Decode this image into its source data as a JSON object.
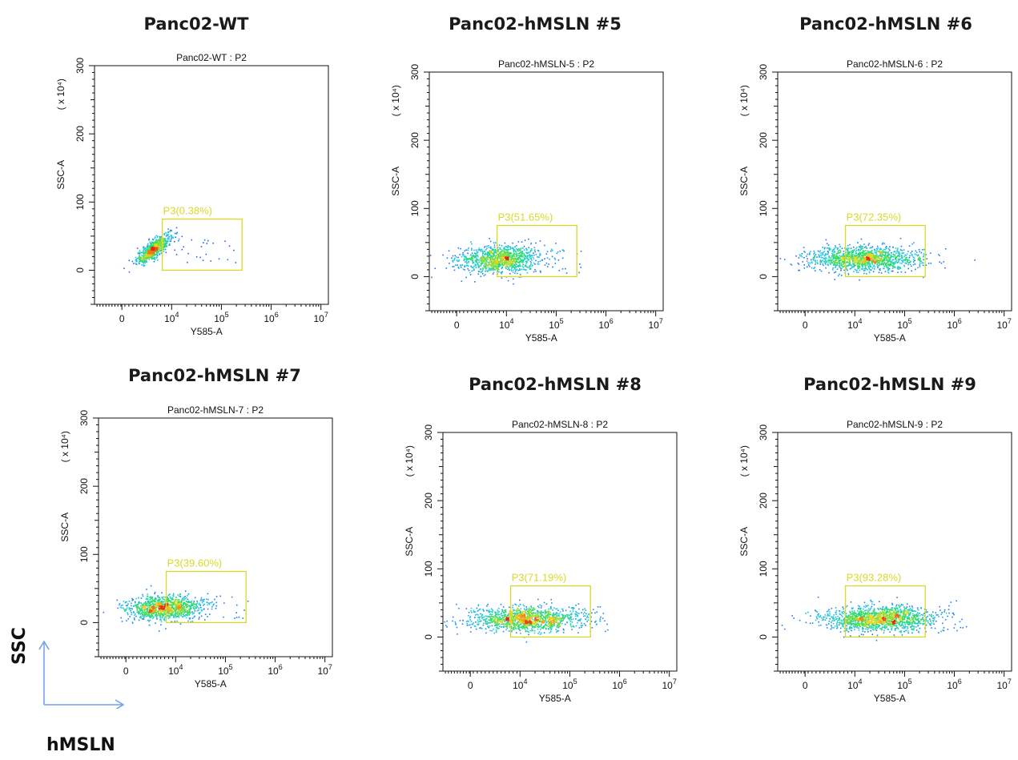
{
  "chart_data": [
    {
      "type": "scatter",
      "panel_heading": "Panc02-WT",
      "title": "Panc02-WT : P2",
      "xlabel": "Y585-A",
      "ylabel": "SSC-A",
      "y_unit": "(x 10^4)",
      "x_scale": "log",
      "x_ticks": [
        "0",
        "10^4",
        "10^5",
        "10^6",
        "10^7"
      ],
      "y_ticks": [
        "0",
        "100",
        "200",
        "300"
      ],
      "ylim": [
        -50,
        300
      ],
      "gate": {
        "name": "P3",
        "label": "P3(0.38%)",
        "x": [
          6000,
          260000
        ],
        "y": [
          0,
          75
        ]
      },
      "populations": [
        {
          "x_center": 3500,
          "x_spread": 0.17,
          "y_center": 32,
          "y_spread": 11,
          "corr": 0.8,
          "count": 700
        }
      ]
    },
    {
      "type": "scatter",
      "panel_heading": "Panc02-hMSLN #5",
      "title": "Panc02-hMSLN-5 : P2",
      "xlabel": "Y585-A",
      "ylabel": "SSC-A",
      "y_unit": "(x 10^4)",
      "x_scale": "log",
      "x_ticks": [
        "0",
        "10^4",
        "10^5",
        "10^6",
        "10^7"
      ],
      "y_ticks": [
        "0",
        "100",
        "200",
        "300"
      ],
      "ylim": [
        -50,
        300
      ],
      "gate": {
        "name": "P3",
        "label": "P3(51.65%)",
        "x": [
          6000,
          260000
        ],
        "y": [
          0,
          75
        ]
      },
      "populations": [
        {
          "x_center": 6500,
          "x_spread": 0.42,
          "y_center": 26,
          "y_spread": 10,
          "corr": 0.1,
          "count": 1100
        }
      ]
    },
    {
      "type": "scatter",
      "panel_heading": "Panc02-hMSLN #6",
      "title": "Panc02-hMSLN-6 : P2",
      "xlabel": "Y585-A",
      "ylabel": "SSC-A",
      "y_unit": "(x 10^4)",
      "x_scale": "log",
      "x_ticks": [
        "0",
        "10^4",
        "10^5",
        "10^6",
        "10^7"
      ],
      "y_ticks": [
        "0",
        "100",
        "200",
        "300"
      ],
      "ylim": [
        -50,
        300
      ],
      "gate": {
        "name": "P3",
        "label": "P3(72.35%)",
        "x": [
          6000,
          260000
        ],
        "y": [
          0,
          75
        ]
      },
      "populations": [
        {
          "x_center": 14000,
          "x_spread": 0.55,
          "y_center": 27,
          "y_spread": 9,
          "corr": 0.05,
          "count": 1300
        }
      ]
    },
    {
      "type": "scatter",
      "panel_heading": "Panc02-hMSLN #7",
      "title": "Panc02-hMSLN-7 : P2",
      "xlabel": "Y585-A",
      "ylabel": "SSC-A",
      "y_unit": "(x 10^4)",
      "x_scale": "log",
      "x_ticks": [
        "0",
        "10^4",
        "10^5",
        "10^6",
        "10^7"
      ],
      "y_ticks": [
        "0",
        "100",
        "200",
        "300"
      ],
      "ylim": [
        -50,
        300
      ],
      "gate": {
        "name": "P3",
        "label": "P3(39.60%)",
        "x": [
          6000,
          260000
        ],
        "y": [
          0,
          75
        ]
      },
      "populations": [
        {
          "x_center": 5000,
          "x_spread": 0.38,
          "y_center": 22,
          "y_spread": 9,
          "corr": 0.1,
          "count": 1100
        }
      ]
    },
    {
      "type": "scatter",
      "panel_heading": "Panc02-hMSLN #8",
      "title": "Panc02-hMSLN-8 : P2",
      "xlabel": "Y585-A",
      "ylabel": "SSC-A",
      "y_unit": "(x 10^4)",
      "x_scale": "log",
      "x_ticks": [
        "0",
        "10^4",
        "10^5",
        "10^6",
        "10^7"
      ],
      "y_ticks": [
        "0",
        "100",
        "200",
        "300"
      ],
      "ylim": [
        -50,
        300
      ],
      "gate": {
        "name": "P3",
        "label": "P3(71.19%)",
        "x": [
          6000,
          260000
        ],
        "y": [
          0,
          75
        ]
      },
      "populations": [
        {
          "x_center": 12000,
          "x_spread": 0.55,
          "y_center": 27,
          "y_spread": 9,
          "corr": 0.05,
          "count": 1300
        }
      ]
    },
    {
      "type": "scatter",
      "panel_heading": "Panc02-hMSLN #9",
      "title": "Panc02-hMSLN-9 : P2",
      "xlabel": "Y585-A",
      "ylabel": "SSC-A",
      "y_unit": "(x 10^4)",
      "x_scale": "log",
      "x_ticks": [
        "0",
        "10^4",
        "10^5",
        "10^6",
        "10^7"
      ],
      "y_ticks": [
        "0",
        "100",
        "200",
        "300"
      ],
      "ylim": [
        -50,
        300
      ],
      "gate": {
        "name": "P3",
        "label": "P3(93.28%)",
        "x": [
          6000,
          260000
        ],
        "y": [
          0,
          75
        ]
      },
      "populations": [
        {
          "x_center": 30000,
          "x_spread": 0.55,
          "y_center": 28,
          "y_spread": 9,
          "corr": 0.05,
          "count": 1400
        }
      ]
    }
  ],
  "legend": {
    "y_axis": "SSC",
    "x_axis": "hMSLN"
  },
  "colors": {
    "gate": "#d9d92a",
    "axis_arrow": "#6ea0e8"
  }
}
